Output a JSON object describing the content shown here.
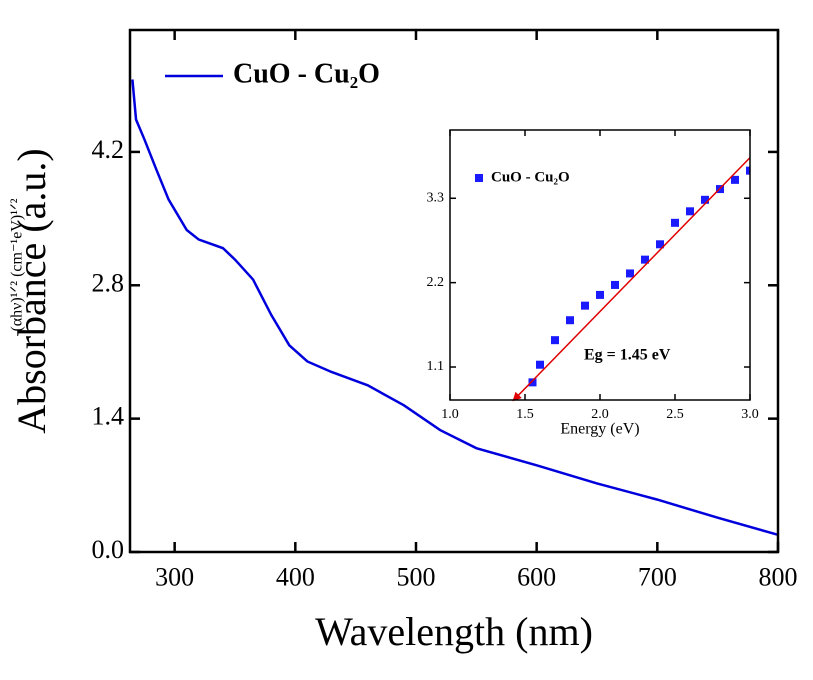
{
  "chart_data": [
    {
      "type": "line",
      "x_label": "Wavelength (nm)",
      "y_label": "Absorbance (a.u.)",
      "x": [
        265,
        268,
        275,
        285,
        295,
        310,
        320,
        340,
        350,
        365,
        380,
        395,
        410,
        430,
        460,
        490,
        520,
        550,
        600,
        650,
        700,
        750,
        800
      ],
      "series": [
        {
          "name": "CuO - Cu₂O",
          "color": "#0000dd",
          "values": [
            4.96,
            4.54,
            4.33,
            4.01,
            3.7,
            3.38,
            3.28,
            3.19,
            3.07,
            2.86,
            2.49,
            2.17,
            2.0,
            1.89,
            1.75,
            1.54,
            1.28,
            1.09,
            0.91,
            0.72,
            0.55,
            0.36,
            0.18
          ]
        }
      ],
      "xlim": [
        263,
        800
      ],
      "xticks": [
        300,
        400,
        500,
        600,
        700,
        800
      ],
      "ylim": [
        0,
        5.48
      ],
      "yticks": [
        {
          "value": 0,
          "label": "0.0"
        },
        1.4,
        2.8,
        4.2
      ]
    },
    {
      "type": "scatter",
      "x_label": "Energy (eV)",
      "y_label": "(αhν)¹ᐟ² (cm⁻¹eV)¹ᐟ²",
      "annotation": "Eg = 1.45 eV",
      "annotation_color": "#e00000",
      "series": [
        {
          "name": "CuO - Cu₂O",
          "color": "#1a1aff",
          "x": [
            1.55,
            1.6,
            1.7,
            1.8,
            1.9,
            2.0,
            2.1,
            2.2,
            2.3,
            2.4,
            2.5,
            2.6,
            2.7,
            2.8,
            2.9,
            3.0
          ],
          "values": [
            0.9,
            1.13,
            1.45,
            1.71,
            1.9,
            2.04,
            2.17,
            2.32,
            2.5,
            2.7,
            2.98,
            3.13,
            3.28,
            3.42,
            3.54,
            3.66
          ]
        },
        {
          "type": "line",
          "color": "#e00000",
          "x": [
            1.45,
            3.0
          ],
          "values": [
            0.72,
            3.83
          ]
        }
      ],
      "xlim": [
        1.0,
        3.0
      ],
      "xticks": [
        {
          "value": 1,
          "label": "1.0"
        },
        1.5,
        {
          "value": 2,
          "label": "2.0"
        },
        2.5,
        {
          "value": 3,
          "label": "3.0"
        }
      ],
      "ylim": [
        0.67,
        4.19
      ],
      "yticks": [
        1.1,
        2.2,
        3.3
      ]
    }
  ]
}
